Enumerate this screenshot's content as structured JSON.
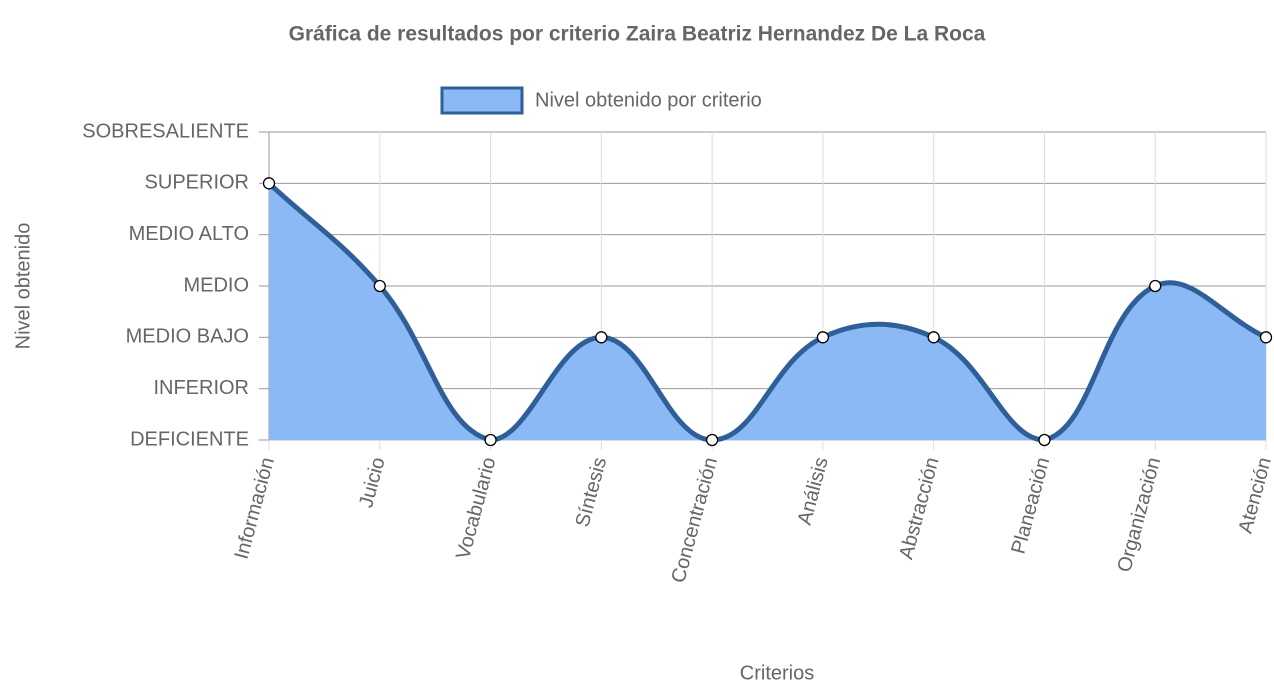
{
  "chart_data": {
    "type": "line",
    "title": "Gráfica de resultados por criterio Zaira Beatriz Hernandez De La Roca",
    "x_label": "Criterios",
    "y_label": "Nivel obtenido",
    "categories": [
      "Información",
      "Juicio",
      "Vocabulario",
      "Síntesis",
      "Concentración",
      "Análisis",
      "Abstracción",
      "Planeación",
      "Organización",
      "Atención"
    ],
    "series": [
      {
        "name": "Nivel obtenido por criterio",
        "color": "#2f5f98",
        "fill_color": "#8ab9f5",
        "values": [
          5,
          3,
          0,
          2,
          0,
          2,
          2,
          0,
          3,
          2
        ]
      }
    ],
    "ylim": [
      0,
      6
    ],
    "yticks": [
      {
        "value": 0,
        "label": "DEFICIENTE"
      },
      {
        "value": 1,
        "label": "INFERIOR"
      },
      {
        "value": 2,
        "label": "MEDIO BAJO"
      },
      {
        "value": 3,
        "label": "MEDIO"
      },
      {
        "value": 4,
        "label": "MEDIO ALTO"
      },
      {
        "value": 5,
        "label": "SUPERIOR"
      },
      {
        "value": 6,
        "label": "SOBRESALIENTE"
      }
    ],
    "grid": true,
    "fill": true,
    "legend": "top"
  }
}
